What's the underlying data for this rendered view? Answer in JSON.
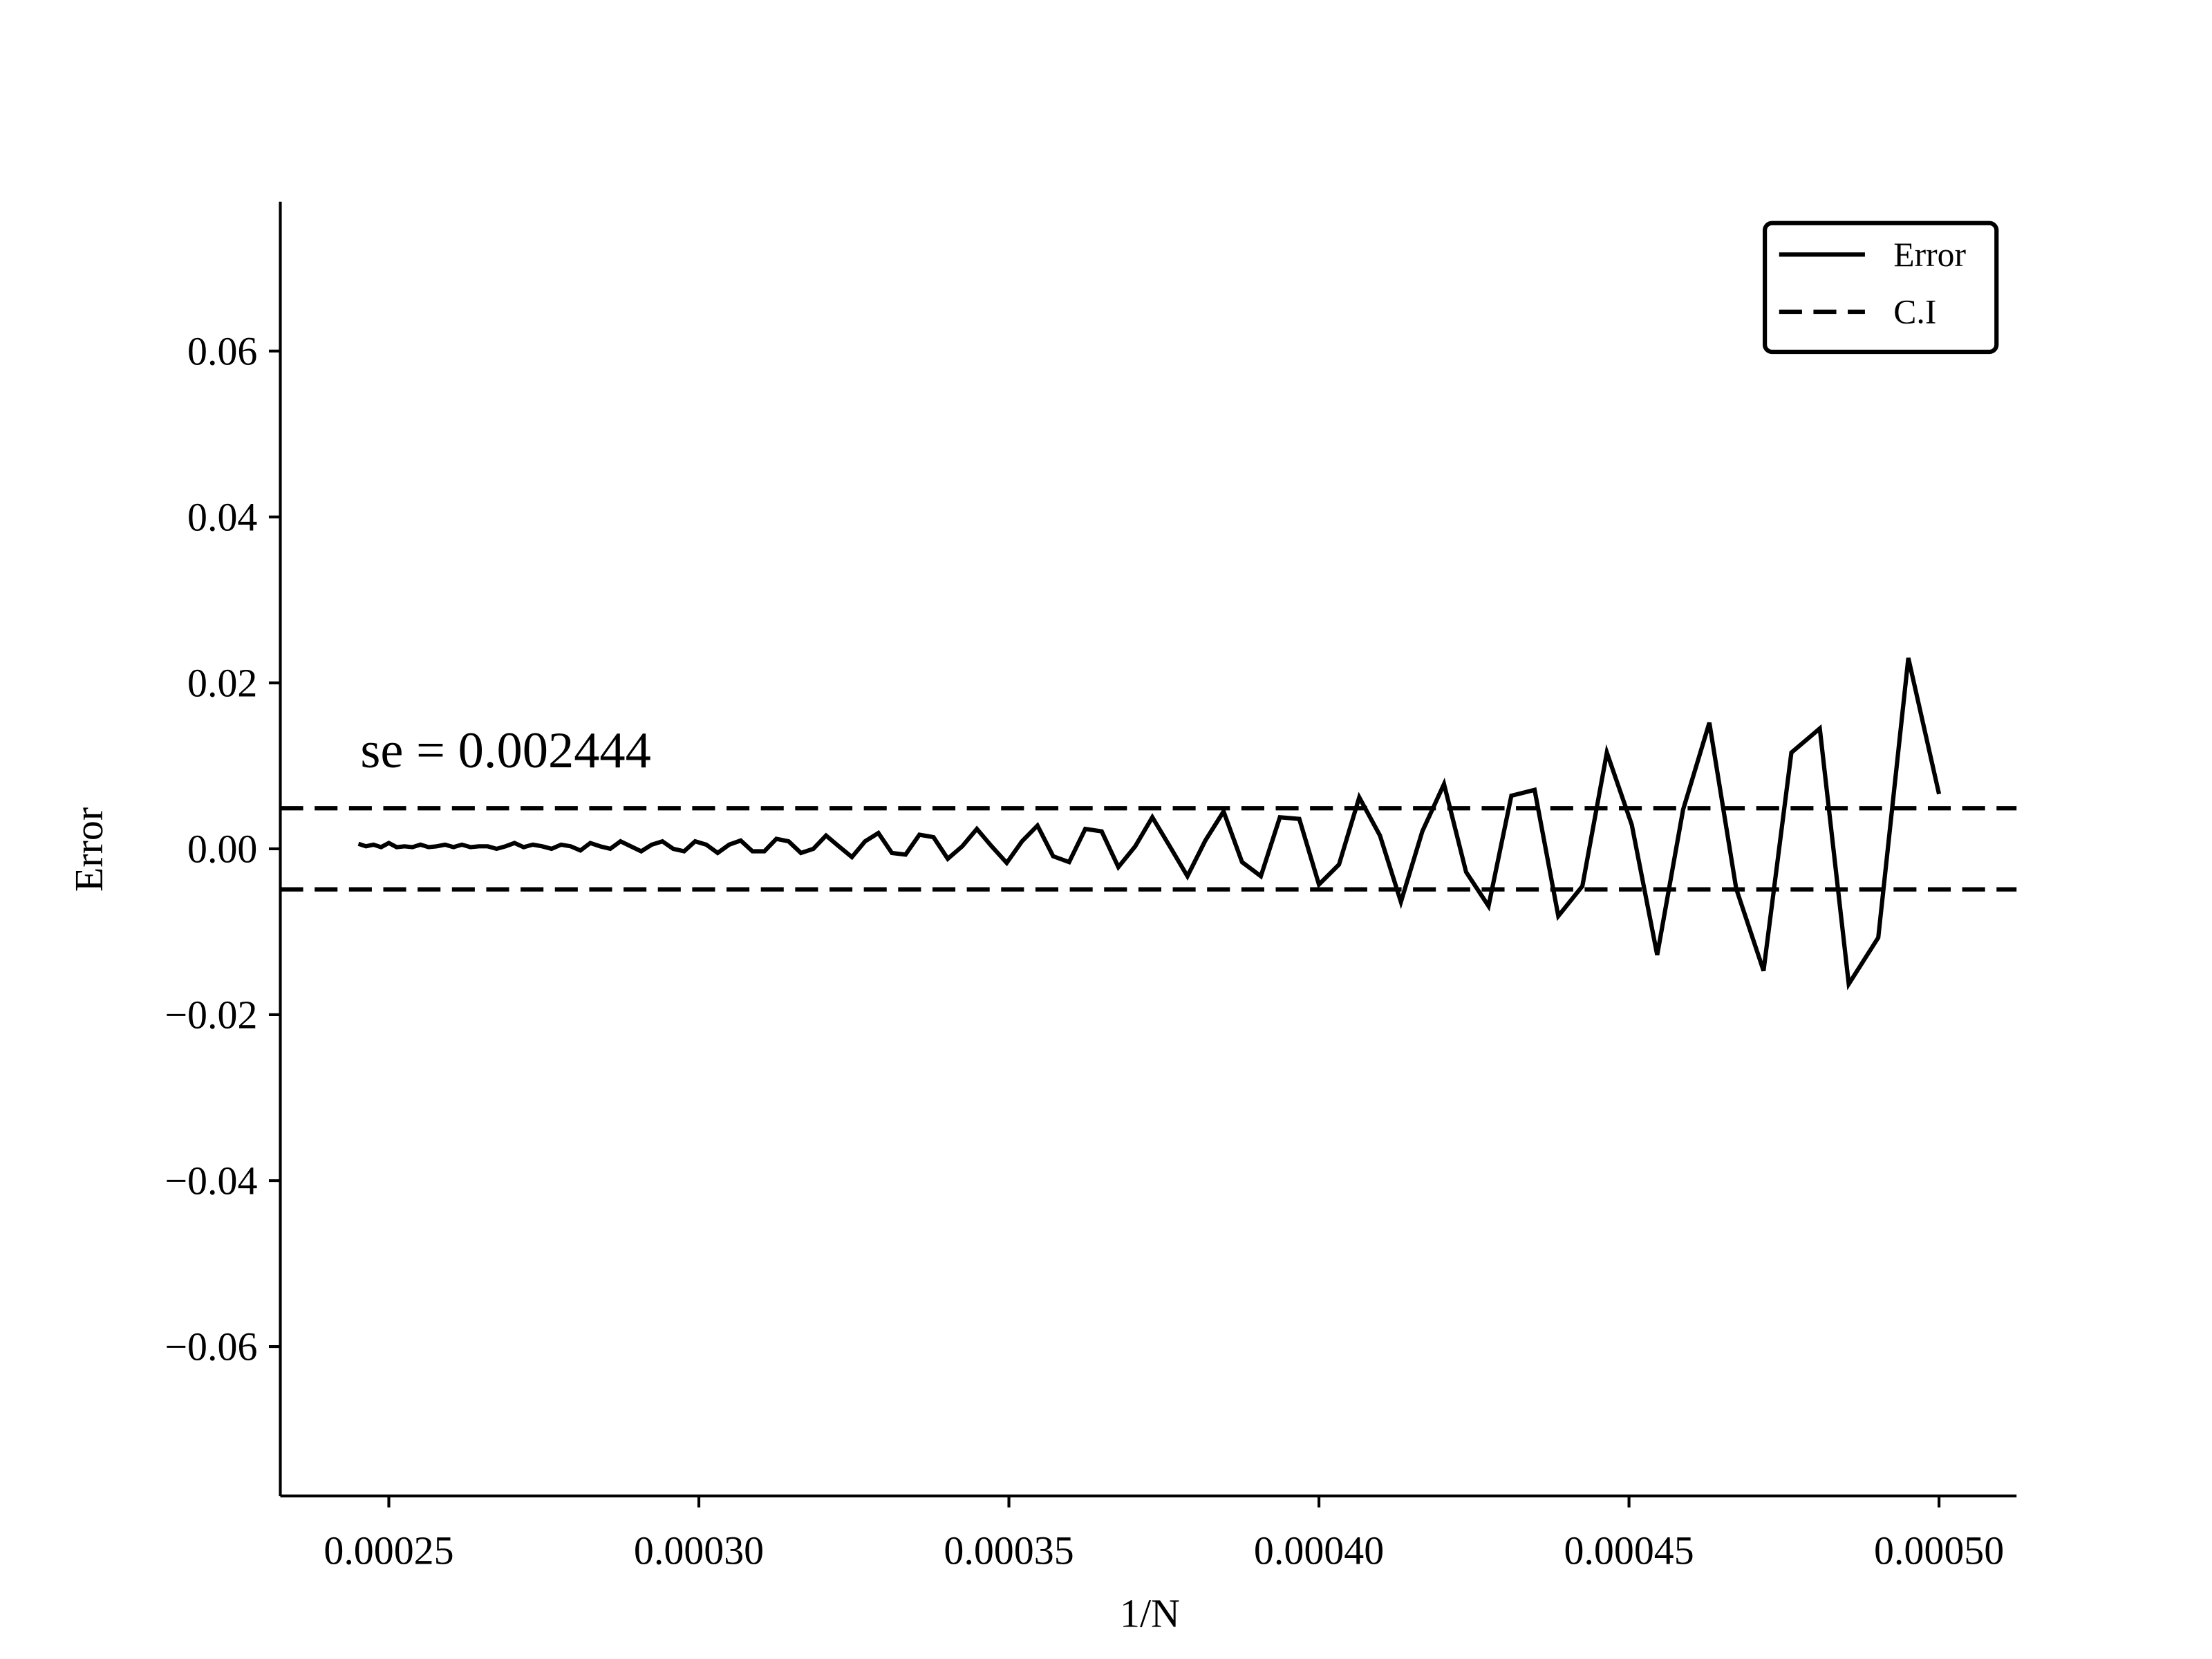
{
  "chart_data": {
    "type": "line",
    "x_label": "1/N",
    "y_label": "Error",
    "annotation": "se = 0.002444",
    "xlim": [
      0.0002325,
      0.0005125
    ],
    "ylim": [
      -0.078,
      0.078
    ],
    "xticks": [
      0.00025,
      {
        "value": 0.0003,
        "label": "0.00030"
      },
      0.00035,
      {
        "value": 0.0004,
        "label": "0.00040"
      },
      0.00045,
      {
        "value": 0.0005,
        "label": "0.00050"
      }
    ],
    "yticks": [
      {
        "value": -0.06,
        "label": "−0.06"
      },
      {
        "value": -0.04,
        "label": "−0.04"
      },
      {
        "value": -0.02,
        "label": "−0.02"
      },
      {
        "value": 0,
        "label": "0.00"
      },
      0.02,
      0.04,
      0.06
    ],
    "legend": "upper right",
    "x": [
      0.0002451,
      0.00024631,
      0.00024752,
      0.00024876,
      0.00025,
      0.00025126,
      0.00025253,
      0.00025381,
      0.0002551,
      0.00025641,
      0.00025773,
      0.00025907,
      0.00026042,
      0.00026178,
      0.00026316,
      0.00026455,
      0.00026596,
      0.00026738,
      0.00026882,
      0.00027027,
      0.00027174,
      0.00027322,
      0.00027473,
      0.00027624,
      0.00027778,
      0.00027933,
      0.0002809,
      0.00028249,
      0.00028409,
      0.00028571,
      0.00028736,
      0.00028902,
      0.0002907,
      0.0002924,
      0.00029412,
      0.00029586,
      0.00029762,
      0.0002994,
      0.0003012,
      0.00030303,
      0.00030488,
      0.00030675,
      0.00030864,
      0.00031056,
      0.0003125,
      0.00031447,
      0.00031646,
      0.00031847,
      0.00032051,
      0.00032258,
      0.00032468,
      0.0003268,
      0.00032895,
      0.00033113,
      0.00033333,
      0.00033557,
      0.00033784,
      0.00034014,
      0.00034247,
      0.00034483,
      0.00034722,
      0.00034965,
      0.00035211,
      0.00035461,
      0.00035714,
      0.00035971,
      0.00036232,
      0.00036496,
      0.00036765,
      0.00037037,
      0.00037313,
      0.00037594,
      0.00037879,
      0.00038168,
      0.00038462,
      0.0003876,
      0.00039063,
      0.0003937,
      0.00039683,
      0.0004,
      0.00040323,
      0.0004065,
      0.00040984,
      0.00041322,
      0.00041667,
      0.00042017,
      0.00042373,
      0.00042735,
      0.00043103,
      0.00043478,
      0.0004386,
      0.00044248,
      0.00044643,
      0.00045045,
      0.00045455,
      0.00045872,
      0.00046296,
      0.00046729,
      0.0004717,
      0.00047619,
      0.00048077,
      0.00048544,
      0.0004902,
      0.00049505,
      0.0005
    ],
    "series": [
      {
        "name": "Error",
        "color": "#000000",
        "style": "solid",
        "values": [
          0.0006,
          0.0003,
          0.0005,
          0.0002,
          0.0007,
          0.0002,
          0.0003,
          0.0002,
          0.0005,
          0.0002,
          0.0003,
          0.0005,
          0.0002,
          0.0005,
          0.0002,
          0.0003,
          0.0003,
          0.0,
          0.0003,
          0.0007,
          0.0002,
          0.0005,
          0.0003,
          0.0,
          0.0005,
          0.0003,
          -0.0002,
          0.0007,
          0.0003,
          0.0,
          0.0009,
          0.0003,
          -0.0003,
          0.0005,
          0.0009,
          0.0,
          -0.0003,
          0.0009,
          0.0005,
          -0.0005,
          0.0005,
          0.001,
          -0.0003,
          -0.0003,
          0.0012,
          0.0009,
          -0.0005,
          0.0,
          0.0016,
          0.0003,
          -0.001,
          0.0009,
          0.0019,
          -0.0005,
          -0.0007,
          0.0017,
          0.0014,
          -0.0012,
          0.0003,
          0.0024,
          0.0003,
          -0.0017,
          0.0009,
          0.0028,
          -0.0009,
          -0.0016,
          0.0024,
          0.0021,
          -0.0022,
          0.0003,
          0.0038,
          0.0003,
          -0.0033,
          0.001,
          0.0045,
          -0.0016,
          -0.0033,
          0.0038,
          0.0036,
          -0.0043,
          -0.0019,
          0.0062,
          0.0016,
          -0.0064,
          0.0021,
          0.0078,
          -0.0028,
          -0.0069,
          0.0064,
          0.0071,
          -0.0081,
          -0.0045,
          0.0116,
          0.0029,
          -0.0128,
          0.0047,
          0.0152,
          -0.0048,
          -0.0147,
          0.0116,
          0.0145,
          -0.0163,
          -0.0107,
          0.023,
          0.0066
        ]
      },
      {
        "name": "C.I",
        "color": "#000000",
        "style": "dashed",
        "hlines": [
          -0.004888,
          0.004888
        ]
      }
    ]
  }
}
